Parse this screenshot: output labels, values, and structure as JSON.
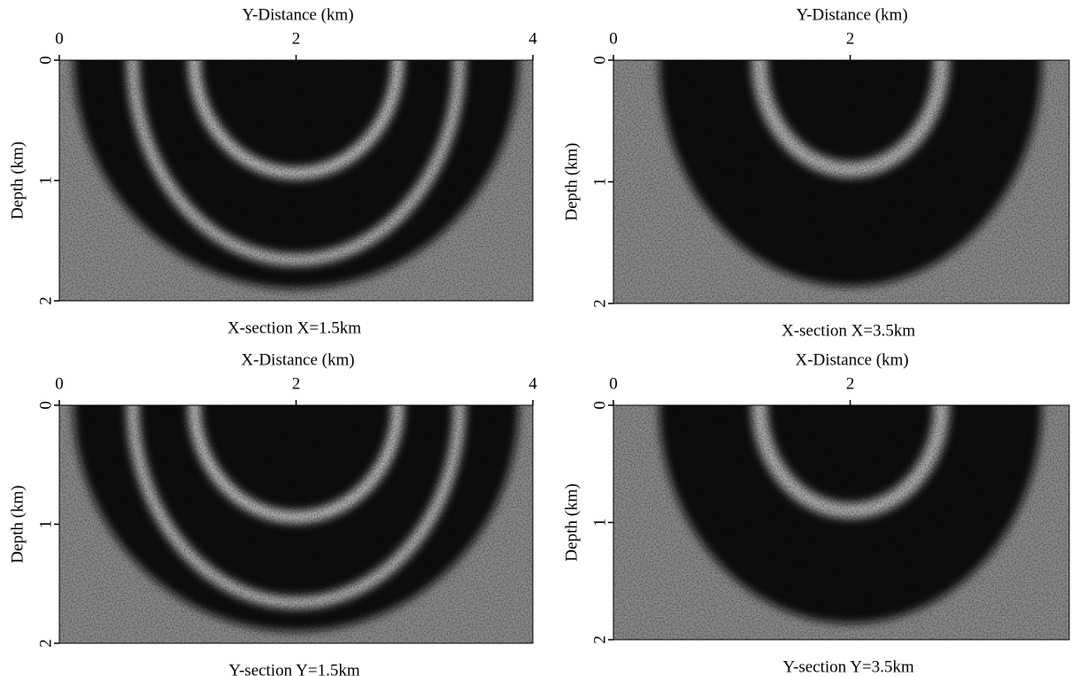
{
  "panels": [
    {
      "x_label": "Y-Distance  (km)",
      "y_label": "Depth (km)",
      "caption": "X-section  X=1.5km",
      "xlim": [
        0,
        4
      ],
      "xticks": [
        0,
        2,
        4
      ],
      "ylim": [
        0,
        2
      ],
      "yticks": [
        0,
        1,
        2
      ]
    },
    {
      "x_label": "Y-Distance  (km)",
      "y_label": "Depth (km)",
      "caption": "X-section  X=3.5km",
      "xlim": [
        0,
        3.85
      ],
      "xticks": [
        0,
        2
      ],
      "ylim": [
        0,
        2
      ],
      "yticks": [
        0,
        1,
        2
      ]
    },
    {
      "x_label": "X-Distance  (km)",
      "y_label": "Depth (km)",
      "caption": "Y-section  Y=1.5km",
      "xlim": [
        0,
        4
      ],
      "xticks": [
        0,
        2,
        4
      ],
      "ylim": [
        0,
        2
      ],
      "yticks": [
        0,
        1,
        2
      ]
    },
    {
      "x_label": "X-Distance  (km)",
      "y_label": "Depth (km)",
      "caption": "Y-section  Y=3.5km",
      "xlim": [
        0,
        3.85
      ],
      "xticks": [
        0,
        2
      ],
      "ylim": [
        0,
        2
      ],
      "yticks": [
        0,
        1,
        2
      ]
    }
  ]
}
